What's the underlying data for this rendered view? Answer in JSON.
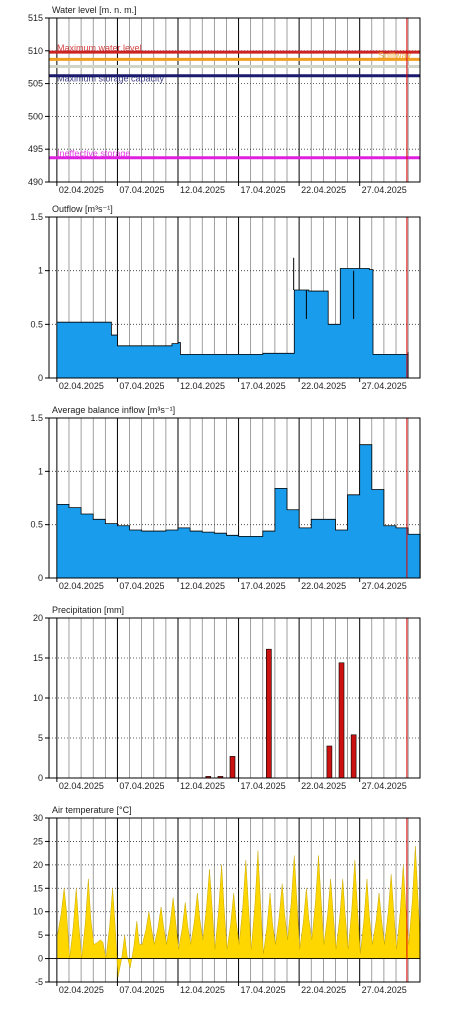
{
  "x_dates": [
    "02.04.2025",
    "07.04.2025",
    "12.04.2025",
    "17.04.2025",
    "22.04.2025",
    "27.04.2025"
  ],
  "colors": {
    "bar_blue": "#1a9cec",
    "precip_red": "#cc1111",
    "temp_yellow": "#ffd700",
    "now_line": "#dd0000",
    "level_max": "#cc2222",
    "level_spillway": "#f0a020",
    "level_storage": "#1a1a6e",
    "level_ineffective": "#e020e0"
  },
  "chart_data": [
    {
      "type": "line",
      "title": "Water level [m. n. m.]",
      "ylim": [
        490,
        515
      ],
      "yticks": [
        490,
        495,
        500,
        505,
        510,
        515
      ],
      "xlabels": [
        "02.04.2025",
        "07.04.2025",
        "12.04.2025",
        "17.04.2025",
        "22.04.2025",
        "27.04.2025"
      ],
      "reference_lines": [
        {
          "name": "Maximum water level",
          "value": 509.8,
          "color": "#cc2222"
        },
        {
          "name": "Spillway",
          "value": 508.7,
          "color": "#f0a020"
        },
        {
          "name": "",
          "value": 507.6,
          "color": "#cfd6c8"
        },
        {
          "name": "Maximum storage capacity",
          "value": 506.2,
          "color": "#1a1a6e"
        },
        {
          "name": "Ineffective storage",
          "value": 493.7,
          "color": "#e020e0"
        }
      ]
    },
    {
      "type": "area",
      "title": "Outflow [m³s⁻¹]",
      "ylim": [
        0,
        1.5
      ],
      "yticks": [
        0,
        0.5,
        1,
        1.5
      ],
      "xlabels": [
        "02.04.2025",
        "07.04.2025",
        "12.04.2025",
        "17.04.2025",
        "22.04.2025",
        "27.04.2025"
      ],
      "series": [
        {
          "x": [
            1,
            5.2,
            5.5,
            6,
            10.5,
            11,
            11.2,
            16,
            18,
            20.4,
            20.6,
            21.5,
            21.8,
            23,
            23.4,
            24.1,
            24.4,
            25.4,
            25.6,
            26.8,
            27.1,
            30
          ],
          "values": [
            0.52,
            0.52,
            0.4,
            0.3,
            0.32,
            0.33,
            0.22,
            0.22,
            0.23,
            0.23,
            0.82,
            0.82,
            0.81,
            0.81,
            0.5,
            0.5,
            1.02,
            1.02,
            1.02,
            1.01,
            0.22,
            0.24
          ]
        }
      ]
    },
    {
      "type": "area",
      "title": "Average balance inflow  [m³s⁻¹]",
      "ylim": [
        0,
        1.5
      ],
      "yticks": [
        0,
        0.5,
        1,
        1.5
      ],
      "xlabels": [
        "02.04.2025",
        "07.04.2025",
        "12.04.2025",
        "17.04.2025",
        "22.04.2025",
        "27.04.2025"
      ],
      "series": [
        {
          "daily": [
            0.69,
            0.66,
            0.6,
            0.55,
            0.51,
            0.49,
            0.45,
            0.44,
            0.44,
            0.45,
            0.47,
            0.44,
            0.43,
            0.42,
            0.4,
            0.39,
            0.39,
            0.44,
            0.84,
            0.64,
            0.47,
            0.55,
            0.55,
            0.45,
            0.78,
            1.25,
            0.83,
            0.49,
            0.47,
            0.41
          ]
        }
      ]
    },
    {
      "type": "bar",
      "title": "Precipitation [mm]",
      "ylim": [
        0,
        20
      ],
      "yticks": [
        0,
        5,
        10,
        15,
        20
      ],
      "xlabels": [
        "02.04.2025",
        "07.04.2025",
        "12.04.2025",
        "17.04.2025",
        "22.04.2025",
        "27.04.2025"
      ],
      "series": [
        {
          "x": [
            13.5,
            14.5,
            15.5,
            18.5,
            23.5,
            24.5,
            25.5
          ],
          "values": [
            0.2,
            0.2,
            2.7,
            16.1,
            4.0,
            14.4,
            5.4
          ]
        }
      ]
    },
    {
      "type": "area",
      "title": "Air temperature [°C]",
      "ylim": [
        -5,
        30
      ],
      "yticks": [
        -5,
        0,
        5,
        10,
        15,
        20,
        25,
        30
      ],
      "xlabels": [
        "02.04.2025",
        "07.04.2025",
        "12.04.2025",
        "17.04.2025",
        "22.04.2025",
        "27.04.2025"
      ],
      "series": [
        {
          "daily_min": [
            5,
            0,
            0,
            3,
            0,
            -4,
            -2,
            3,
            3,
            3,
            2,
            3,
            4,
            2,
            2,
            3,
            2,
            1,
            3,
            4,
            2,
            4,
            3,
            2,
            2,
            1,
            3,
            3,
            2,
            3
          ],
          "daily_max": [
            15,
            15,
            17,
            4,
            15,
            5,
            8,
            10,
            11,
            13,
            12,
            14,
            19,
            20,
            14,
            21,
            23,
            14,
            16,
            22,
            15,
            22,
            17,
            17,
            21,
            17,
            14,
            18,
            20,
            24
          ]
        }
      ]
    }
  ]
}
